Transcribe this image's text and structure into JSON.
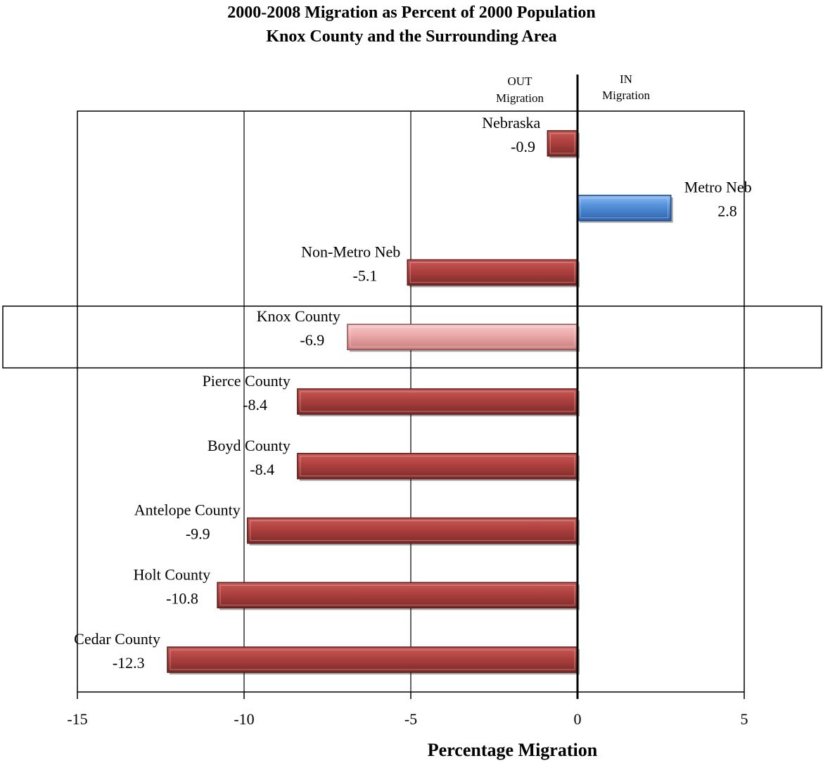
{
  "chart_data": {
    "type": "bar",
    "orientation": "horizontal",
    "title": "2000-2008 Migration as Percent of 2000 Population",
    "subtitle": "Knox County and the Surrounding  Area",
    "xlabel": "Percentage Migration",
    "ylabel": "",
    "xlim": [
      -15,
      5
    ],
    "xticks": [
      "-15",
      "-10",
      "-5",
      "0",
      "5"
    ],
    "grid": "vertical major gridlines",
    "out_label": [
      "OUT",
      "Migration"
    ],
    "in_label": [
      "IN",
      "Migration"
    ],
    "categories": [
      "Nebraska",
      "Metro Neb",
      "Non-Metro Neb",
      "Knox County",
      "Pierce County",
      "Boyd County",
      "Antelope County",
      "Holt County",
      "Cedar County"
    ],
    "values": [
      -0.9,
      2.8,
      -5.1,
      -6.9,
      -8.4,
      -8.4,
      -9.9,
      -10.8,
      -12.3
    ],
    "value_labels": [
      "-0.9",
      "2.8",
      "-5.1",
      "-6.9",
      "-8.4",
      "-8.4",
      "-9.9",
      "-10.8",
      "-12.3"
    ],
    "highlighted_category": "Knox County",
    "colors": {
      "negative": "#a83c3a",
      "positive": "#4a86d4",
      "highlight": "#e9a6a6"
    }
  }
}
